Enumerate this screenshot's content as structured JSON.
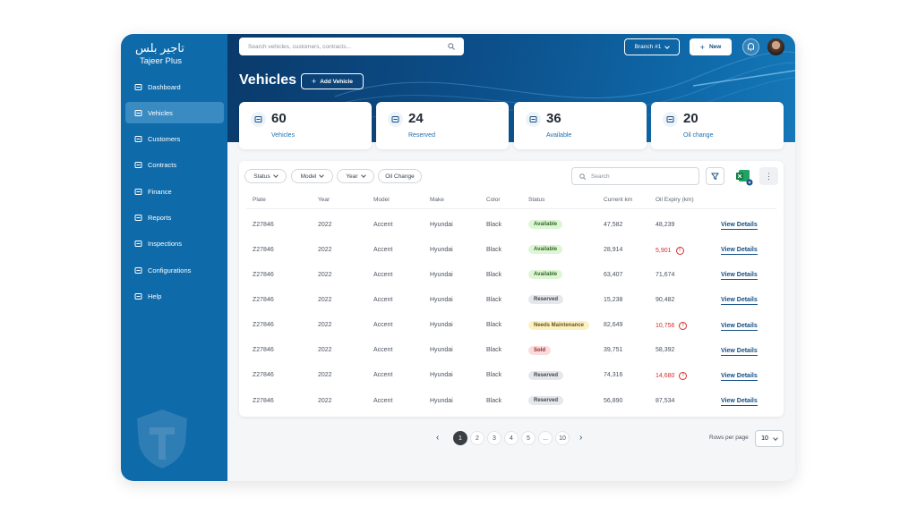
{
  "sidebar": {
    "logo_arabic": "تاجير بلس",
    "logo_text": "Tajeer Plus",
    "nav": [
      {
        "label": "Dashboard",
        "active": false
      },
      {
        "label": "Vehicles",
        "active": true
      },
      {
        "label": "Customers",
        "active": false
      },
      {
        "label": "Contracts",
        "active": false
      },
      {
        "label": "Finance",
        "active": false
      },
      {
        "label": "Reports",
        "active": false
      },
      {
        "label": "Inspections",
        "active": false
      },
      {
        "label": "Configurations",
        "active": false
      },
      {
        "label": "Help",
        "active": false
      }
    ]
  },
  "topbar": {
    "search_placeholder": "Search vehicles, customers, contracts...",
    "branch": "Branch #1",
    "new_button": "New"
  },
  "page": {
    "title": "Vehicles",
    "add_button": "Add Vehicle"
  },
  "stats": [
    {
      "value": 60,
      "label": "Vehicles"
    },
    {
      "value": 24,
      "label": "Reserved"
    },
    {
      "value": 36,
      "label": "Available"
    },
    {
      "value": 20,
      "label": "Oil change"
    }
  ],
  "filters": [
    "Status",
    "Model",
    "Year",
    "Oil Change"
  ],
  "table_search": "Search",
  "table": {
    "columns": [
      "Plate",
      "Year",
      "Model",
      "Make",
      "Color",
      "Status",
      "Current km",
      "Oil Expiry (km)"
    ],
    "row_action": "View Details",
    "rows": [
      {
        "plate": "Z27846",
        "year": "2022",
        "model": "Accent",
        "make": "Hyundai",
        "color": "Black",
        "status": "Available",
        "current_km": "47,582",
        "oil_expiry": "48,239",
        "warning": false,
        "status_bg": "#def5d6",
        "status_fg": "#2f6b25"
      },
      {
        "plate": "Z27846",
        "year": "2022",
        "model": "Accent",
        "make": "Hyundai",
        "color": "Black",
        "status": "Available",
        "current_km": "28,914",
        "oil_expiry": "5,901",
        "warning": true,
        "status_bg": "#def5d6",
        "status_fg": "#2f6b25"
      },
      {
        "plate": "Z27846",
        "year": "2022",
        "model": "Accent",
        "make": "Hyundai",
        "color": "Black",
        "status": "Available",
        "current_km": "63,407",
        "oil_expiry": "71,674",
        "warning": false,
        "status_bg": "#def5d6",
        "status_fg": "#2f6b25"
      },
      {
        "plate": "Z27846",
        "year": "2022",
        "model": "Accent",
        "make": "Hyundai",
        "color": "Black",
        "status": "Reserved",
        "current_km": "15,238",
        "oil_expiry": "90,482",
        "warning": false,
        "status_bg": "#e5e7ea",
        "status_fg": "#3f4650"
      },
      {
        "plate": "Z27846",
        "year": "2022",
        "model": "Accent",
        "make": "Hyundai",
        "color": "Black",
        "status": "Needs Maintenance",
        "current_km": "82,649",
        "oil_expiry": "10,756",
        "warning": true,
        "status_bg": "#fcf1c4",
        "status_fg": "#6b5410"
      },
      {
        "plate": "Z27846",
        "year": "2022",
        "model": "Accent",
        "make": "Hyundai",
        "color": "Black",
        "status": "Sold",
        "current_km": "39,751",
        "oil_expiry": "58,392",
        "warning": false,
        "status_bg": "#fbdcdc",
        "status_fg": "#8a2a2a"
      },
      {
        "plate": "Z27846",
        "year": "2022",
        "model": "Accent",
        "make": "Hyundai",
        "color": "Black",
        "status": "Reserved",
        "current_km": "74,316",
        "oil_expiry": "14,680",
        "warning": true,
        "status_bg": "#e5e7ea",
        "status_fg": "#3f4650"
      },
      {
        "plate": "Z27846",
        "year": "2022",
        "model": "Accent",
        "make": "Hyundai",
        "color": "Black",
        "status": "Reserved",
        "current_km": "56,890",
        "oil_expiry": "87,534",
        "warning": false,
        "status_bg": "#e5e7ea",
        "status_fg": "#3f4650"
      }
    ]
  },
  "pagination": {
    "pages": [
      1,
      2,
      3,
      4,
      5,
      "...",
      10
    ],
    "current": 1,
    "rows_per_page_label": "Rows per page",
    "rows_per_page": 10
  }
}
